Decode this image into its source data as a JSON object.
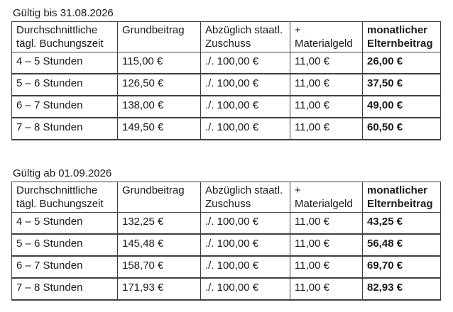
{
  "page": {
    "background_color": "#ffffff",
    "text_color": "#1a1a1a",
    "border_color": "#3f3f3f"
  },
  "tables": [
    {
      "title": "Gültig bis 31.08.2026",
      "columns": [
        "Durchschnittliche\ntägl. Buchungszeit",
        "Grundbeitrag",
        "Abzüglich staatl.\nZuschuss",
        "+\nMaterialgeld",
        "monatlicher\nElternbeitrag"
      ],
      "rows": [
        [
          "4 – 5 Stunden",
          "115,00 €",
          "./. 100,00 €",
          "11,00 €",
          "26,00 €"
        ],
        [
          "5 – 6 Stunden",
          "126,50 €",
          "./. 100,00 €",
          "11,00 €",
          "37,50 €"
        ],
        [
          "6 – 7 Stunden",
          "138,00 €",
          "./. 100,00 €",
          "11,00 €",
          "49,00 €"
        ],
        [
          "7 – 8 Stunden",
          "149,50 €",
          "./. 100,00 €",
          "11,00 €",
          "60,50 €"
        ]
      ]
    },
    {
      "title": "Gültig ab 01.09.2026",
      "columns": [
        "Durchschnittliche\ntägl. Buchungszeit",
        "Grundbeitrag",
        "Abzüglich staatl.\nZuschuss",
        "+\nMaterialgeld",
        "monatlicher\nElternbeitrag"
      ],
      "rows": [
        [
          "4 – 5 Stunden",
          "132,25 €",
          "./. 100,00 €",
          "11,00 €",
          "43,25 €"
        ],
        [
          "5 – 6 Stunden",
          "145,48 €",
          "./. 100,00 €",
          "11,00 €",
          "56,48 €"
        ],
        [
          "6 – 7 Stunden",
          "158,70 €",
          "./. 100,00 €",
          "11,00 €",
          "69,70 €"
        ],
        [
          "7 – 8 Stunden",
          "171,93 €",
          "./. 100,00 €",
          "11,00 €",
          "82,93 €"
        ]
      ]
    }
  ]
}
